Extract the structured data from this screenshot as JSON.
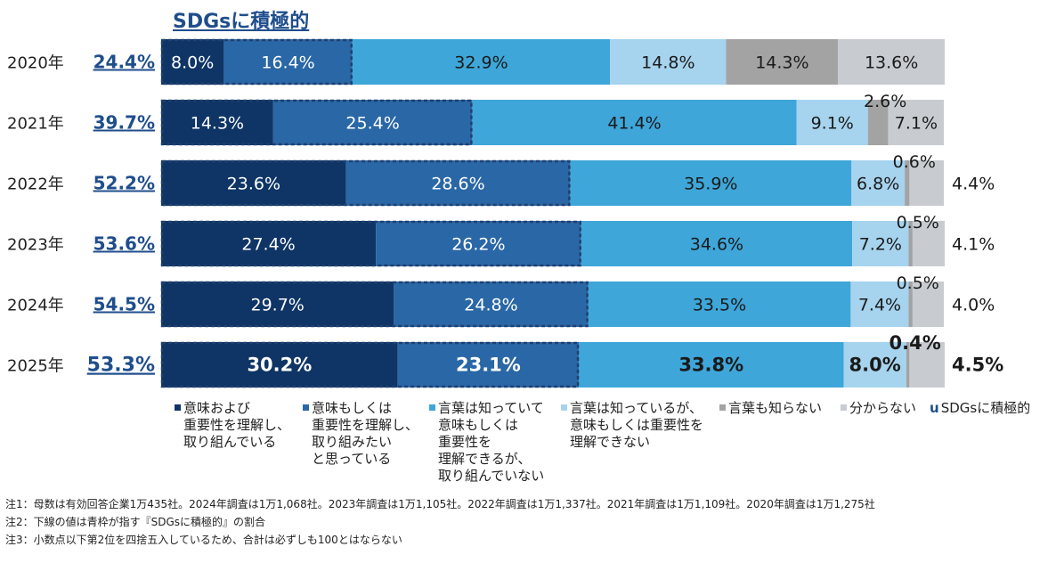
{
  "chart_data": {
    "type": "bar",
    "orientation": "horizontal-stacked-100",
    "title": "SDGsに積極的",
    "categories": [
      "2020年",
      "2021年",
      "2022年",
      "2023年",
      "2024年",
      "2025年"
    ],
    "positive_totals": [
      "24.4%",
      "39.7%",
      "52.2%",
      "53.6%",
      "54.5%",
      "53.3%"
    ],
    "series": [
      {
        "name": "意味および\n重要性を理解し、\n取り組んでいる",
        "color": "#0f3566",
        "text_color": "#ffffff",
        "values": [
          8.0,
          14.3,
          23.6,
          27.4,
          29.7,
          30.2
        ],
        "labels": [
          "8.0%",
          "14.3%",
          "23.6%",
          "27.4%",
          "29.7%",
          "30.2%"
        ]
      },
      {
        "name": "意味もしくは\n重要性を理解し、\n取り組みたい\nと思っている",
        "color": "#2a67a6",
        "text_color": "#ffffff",
        "values": [
          16.4,
          25.4,
          28.6,
          26.2,
          24.8,
          23.1
        ],
        "labels": [
          "16.4%",
          "25.4%",
          "28.6%",
          "26.2%",
          "24.8%",
          "23.1%"
        ]
      },
      {
        "name": "言葉は知っていて\n意味もしくは\n重要性を\n理解できるが、\n取り組んでいない",
        "color": "#3ea6d9",
        "text_color": "#1a1a1a",
        "values": [
          32.9,
          41.4,
          35.9,
          34.6,
          33.5,
          33.8
        ],
        "labels": [
          "32.9%",
          "41.4%",
          "35.9%",
          "34.6%",
          "33.5%",
          "33.8%"
        ]
      },
      {
        "name": "言葉は知っているが、\n意味もしくは重要性を\n理解できない",
        "color": "#a6d3ee",
        "text_color": "#1a1a1a",
        "values": [
          14.8,
          9.1,
          6.8,
          7.2,
          7.4,
          8.0
        ],
        "labels": [
          "14.8%",
          "9.1%",
          "6.8%",
          "7.2%",
          "7.4%",
          "8.0%"
        ]
      },
      {
        "name": "言葉も知らない",
        "color": "#a3a3a3",
        "text_color": "#1a1a1a",
        "values": [
          14.3,
          2.6,
          0.6,
          0.5,
          0.5,
          0.4
        ],
        "labels": [
          "14.3%",
          "2.6%",
          "0.6%",
          "0.5%",
          "0.5%",
          "0.4%"
        ]
      },
      {
        "name": "分からない",
        "color": "#c8ccd1",
        "text_color": "#1a1a1a",
        "values": [
          13.6,
          7.1,
          4.4,
          4.1,
          4.0,
          4.5
        ],
        "labels": [
          "13.6%",
          "7.1%",
          "4.4%",
          "4.1%",
          "4.0%",
          "4.5%"
        ]
      }
    ],
    "highlight_legend": "SDGsに積極的",
    "highlight_symbol": "u",
    "grid": false,
    "legend_position": "bottom"
  },
  "notes": [
    "注1：母数は有効回答企業1万435社。2024年調査は1万1,068社。2023年調査は1万1,105社。2022年調査は1万1,337社。2021年調査は1万1,109社。2020年調査は1万1,275社",
    "注2：下線の値は青枠が指す『SDGsに積極的』の割合",
    "注3：小数点以下第2位を四捨五入しているため、合計は必ずしも100とはならない"
  ]
}
